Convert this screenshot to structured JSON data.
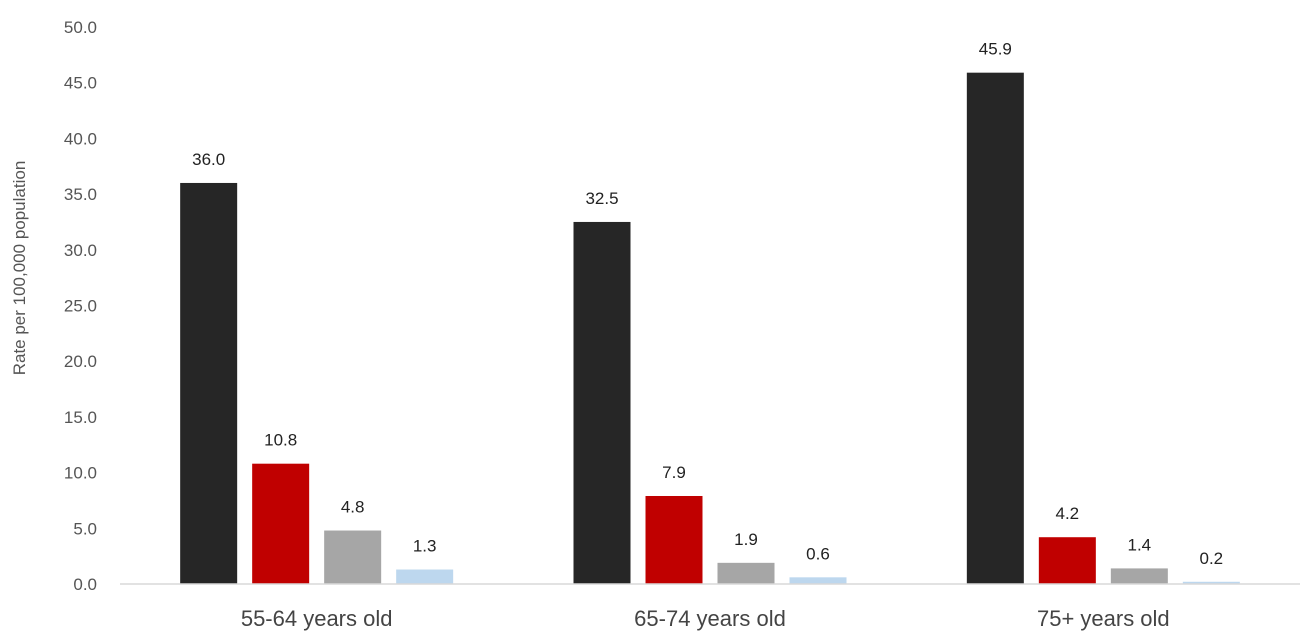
{
  "chart_data": {
    "type": "bar",
    "title": "",
    "xlabel": "",
    "ylabel": "Rate per 100,000 population",
    "ylim": [
      0,
      50
    ],
    "yticks": [
      "0.0",
      "5.0",
      "10.0",
      "15.0",
      "20.0",
      "25.0",
      "30.0",
      "35.0",
      "40.0",
      "45.0",
      "50.0"
    ],
    "grid": false,
    "legend": "none",
    "categories": [
      "55-64 years old",
      "65-74 years old",
      "75+ years old"
    ],
    "series": [
      {
        "color": "#262626",
        "values": [
          36.0,
          32.5,
          45.9
        ],
        "labels": [
          "36.0",
          "32.5",
          "45.9"
        ]
      },
      {
        "color": "#c00000",
        "values": [
          10.8,
          7.9,
          4.2
        ],
        "labels": [
          "10.8",
          "7.9",
          "4.2"
        ]
      },
      {
        "color": "#a6a6a6",
        "values": [
          4.8,
          1.9,
          1.4
        ],
        "labels": [
          "4.8",
          "1.9",
          "1.4"
        ]
      },
      {
        "color": "#bdd7ee",
        "values": [
          1.3,
          0.6,
          0.2
        ],
        "labels": [
          "1.3",
          "0.6",
          "0.2"
        ]
      }
    ]
  }
}
